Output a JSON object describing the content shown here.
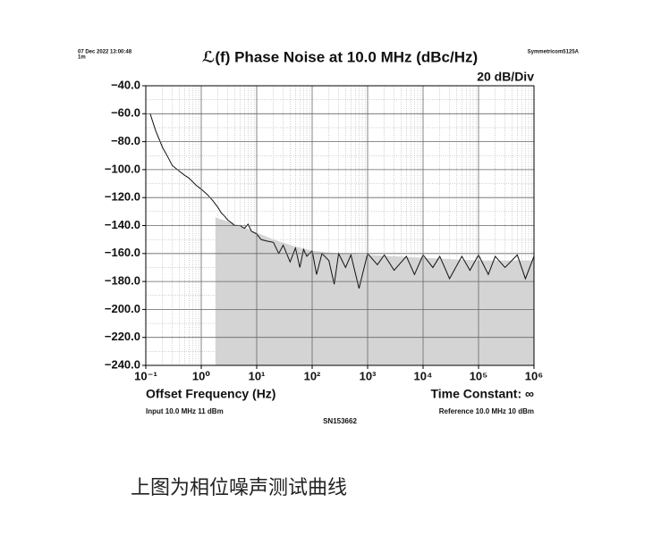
{
  "chart_data": {
    "type": "line",
    "timestamp": "07 Dec 2022 13:00:48",
    "duration": "1m",
    "instrument": "Symmetricom5125A",
    "title": "ℒ(f) Phase Noise at 10.0 MHz (dBc/Hz)",
    "scale_label": "20 dB/Div",
    "xlabel": "Offset Frequency (Hz)",
    "time_constant": "Time Constant: ∞",
    "input": "Input 10.0 MHz 11 dBm",
    "reference": "Reference 10.0 MHz 10 dBm",
    "serial": "SN153662",
    "xscale": "log",
    "grid": true,
    "xlim": [
      0.1,
      1000000
    ],
    "ylim": [
      -240,
      -40
    ],
    "xticks": [
      {
        "value": 0.1,
        "label": "10⁻¹"
      },
      {
        "value": 1,
        "label": "10⁰"
      },
      {
        "value": 10,
        "label": "10¹"
      },
      {
        "value": 100,
        "label": "10²"
      },
      {
        "value": 1000,
        "label": "10³"
      },
      {
        "value": 10000,
        "label": "10⁴"
      },
      {
        "value": 100000,
        "label": "10⁵"
      },
      {
        "value": 1000000,
        "label": "10⁶"
      }
    ],
    "yticks": [
      {
        "value": -40,
        "label": "−40.0"
      },
      {
        "value": -60,
        "label": "−60.0"
      },
      {
        "value": -80,
        "label": "−80.0"
      },
      {
        "value": -100,
        "label": "−100.0"
      },
      {
        "value": -120,
        "label": "−120.0"
      },
      {
        "value": -140,
        "label": "−140.0"
      },
      {
        "value": -160,
        "label": "−160.0"
      },
      {
        "value": -180,
        "label": "−180.0"
      },
      {
        "value": -200,
        "label": "−200.0"
      },
      {
        "value": -220,
        "label": "−220.0"
      },
      {
        "value": -240,
        "label": "−240.0"
      }
    ],
    "series": [
      {
        "style": "area",
        "color": "#d4d4d4",
        "x": [
          1.8,
          2,
          3,
          5,
          10,
          20,
          50,
          100,
          300,
          1000,
          3000,
          10000,
          30000,
          100000,
          1000000
        ],
        "values": [
          -134,
          -135,
          -137,
          -140,
          -145,
          -150,
          -155,
          -158,
          -160,
          -161,
          -162,
          -163,
          -164,
          -165,
          -165
        ]
      },
      {
        "style": "line",
        "color": "#111111",
        "x": [
          0.12,
          0.15,
          0.2,
          0.25,
          0.3,
          0.4,
          0.5,
          0.6,
          0.8,
          1,
          1.3,
          1.6,
          2,
          2.3,
          2.6,
          3,
          3.5,
          4,
          5,
          6,
          7,
          8,
          10,
          12,
          15,
          20,
          25,
          30,
          40,
          50,
          60,
          70,
          80,
          100,
          120,
          150,
          200,
          250,
          300,
          400,
          500,
          700,
          1000,
          1500,
          2000,
          3000,
          5000,
          7000,
          10000,
          15000,
          20000,
          30000,
          50000,
          70000,
          100000,
          150000,
          200000,
          300000,
          500000,
          700000,
          1000000
        ],
        "values": [
          -60,
          -72,
          -84,
          -91,
          -97,
          -101,
          -104,
          -106,
          -111,
          -114,
          -118,
          -122,
          -127,
          -131,
          -133,
          -136,
          -138,
          -140,
          -140,
          -142,
          -139,
          -144,
          -146,
          -150,
          -151,
          -152,
          -160,
          -154,
          -166,
          -156,
          -170,
          -157,
          -162,
          -158,
          -175,
          -160,
          -165,
          -182,
          -160,
          -170,
          -161,
          -185,
          -160,
          -168,
          -161,
          -172,
          -162,
          -175,
          -161,
          -170,
          -162,
          -178,
          -162,
          -172,
          -161,
          -175,
          -162,
          -170,
          -161,
          -178,
          -162
        ]
      }
    ]
  },
  "caption": "上图为相位噪声测试曲线"
}
